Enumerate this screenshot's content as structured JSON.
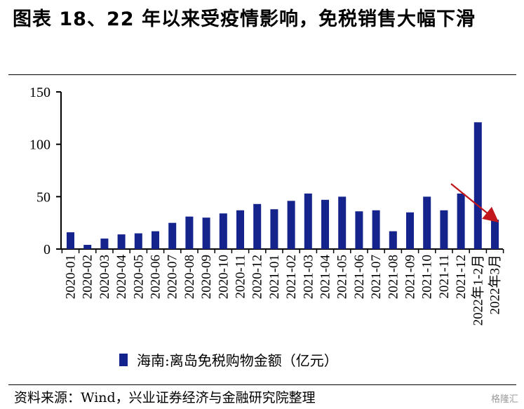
{
  "header": {
    "title": "图表 18、22 年以来受疫情影响，免税销售大幅下滑"
  },
  "footer": {
    "source": "资料来源：Wind，兴业证券经济与金融研究院整理",
    "watermark": "格隆汇"
  },
  "chart_data": {
    "type": "bar",
    "title": "",
    "xlabel": "",
    "ylabel": "",
    "ylim": [
      0,
      150
    ],
    "yticks": [
      0,
      50,
      100,
      150
    ],
    "grid": false,
    "legend": "bottom",
    "bar_color": "#14248C",
    "arrow_color": "#C0161C",
    "annotation": "red-downward-arrow-toward-last-bar",
    "categories": [
      "2020-01",
      "2020-02",
      "2020-03",
      "2020-04",
      "2020-05",
      "2020-06",
      "2020-07",
      "2020-08",
      "2020-09",
      "2020-10",
      "2020-11",
      "2020-12",
      "2021-01",
      "2021-02",
      "2021-03",
      "2021-04",
      "2021-05",
      "2021-06",
      "2021-07",
      "2021-08",
      "2021-09",
      "2021-10",
      "2021-11",
      "2021-12",
      "2022年1-2月",
      "2022年3月"
    ],
    "series": [
      {
        "name": "海南:离岛免税购物金额（亿元）",
        "values": [
          16,
          4,
          10,
          14,
          15,
          17,
          25,
          31,
          30,
          34,
          37,
          43,
          38,
          46,
          53,
          47,
          50,
          36,
          37,
          17,
          35,
          50,
          37,
          53,
          121,
          28
        ]
      }
    ]
  }
}
